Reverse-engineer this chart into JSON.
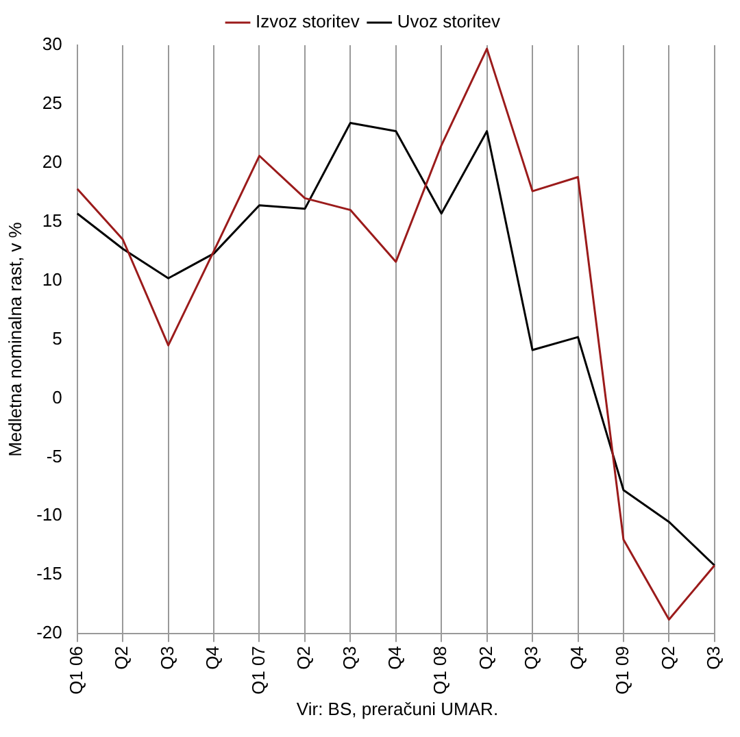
{
  "chart_data": {
    "type": "line",
    "ylabel": "Medletna nominalna rast, v %",
    "categories": [
      "Q1 06",
      "Q2",
      "Q3",
      "Q4",
      "Q1 07",
      "Q2",
      "Q3",
      "Q4",
      "Q1 08",
      "Q2",
      "Q3",
      "Q4",
      "Q1 09",
      "Q2",
      "Q3"
    ],
    "series": [
      {
        "name": "Izvoz storitev",
        "color": "#9b1b1b",
        "values": [
          17.8,
          13.5,
          4.5,
          12.5,
          20.6,
          17.0,
          16.0,
          11.6,
          21.5,
          29.7,
          17.6,
          18.8,
          -12.0,
          -18.8,
          -14.2
        ]
      },
      {
        "name": "Uvoz storitev",
        "color": "#000000",
        "values": [
          15.7,
          12.7,
          10.2,
          12.3,
          16.4,
          16.1,
          23.4,
          22.7,
          15.7,
          22.7,
          4.1,
          5.2,
          -7.8,
          -10.5,
          -14.2
        ]
      }
    ],
    "ylim": [
      -20,
      30
    ],
    "yticks": [
      -20,
      -15,
      -10,
      -5,
      0,
      5,
      10,
      15,
      20,
      25,
      30
    ],
    "grid": "x",
    "legend": "top",
    "marker": "none",
    "line_style": "solid",
    "annotations": [
      "Vir: BS, preračuni UMAR."
    ]
  }
}
